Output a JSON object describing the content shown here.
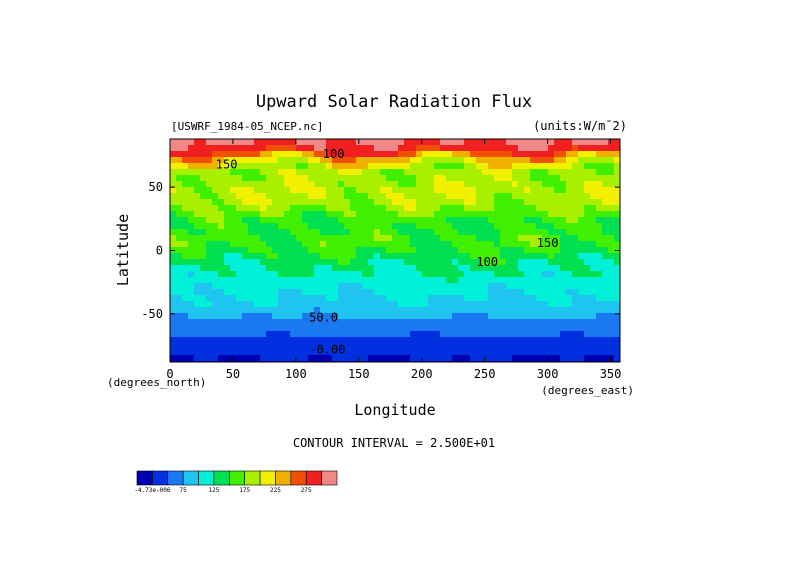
{
  "chart_data": {
    "type": "heatmap",
    "title": "Upward Solar Radiation Flux",
    "source": "[USWRF_1984-05_NCEP.nc]",
    "units": "(units:W/m¯2)",
    "xlabel": "Longitude",
    "ylabel": "Latitude",
    "x_unit_label": "(degrees_east)",
    "y_unit_label": "(degrees_north)",
    "xlim": [
      0,
      357.5
    ],
    "ylim": [
      -88,
      88
    ],
    "x_ticks": [
      0,
      50,
      100,
      150,
      200,
      250,
      300,
      350
    ],
    "y_ticks": [
      50,
      0,
      -50
    ],
    "contour_interval_text": "CONTOUR INTERVAL = 2.500E+01",
    "contour_labels": [
      {
        "text": "50.0",
        "lon": 122,
        "lat": -53
      },
      {
        "text": "-0.00",
        "lon": 125,
        "lat": -78
      },
      {
        "text": "100",
        "lon": 252,
        "lat": -9
      },
      {
        "text": "150",
        "lon": 300,
        "lat": 6
      },
      {
        "text": "100",
        "lon": 130,
        "lat": 76
      },
      {
        "text": "150",
        "lon": 45,
        "lat": 68
      }
    ],
    "colorbar": {
      "levels": [
        0,
        25,
        50,
        75,
        100,
        125,
        150,
        175,
        200,
        225,
        250,
        275
      ],
      "tick_labels": [
        "-4.73e-006",
        "75",
        "125",
        "175",
        "225",
        "275"
      ],
      "colors": [
        "#0000b0",
        "#0030e0",
        "#1a78f0",
        "#20c4f0",
        "#00f0d8",
        "#00e050",
        "#40f000",
        "#a8f000",
        "#f0f000",
        "#f0b000",
        "#f05000",
        "#f02020",
        "#f08888"
      ]
    },
    "zonal_profile": {
      "description": "approximate zonal-mean flux (W/m2) by latitude, with longitudinal variability",
      "lat": [
        -88,
        -80,
        -72,
        -64,
        -56,
        -48,
        -40,
        -32,
        -24,
        -16,
        -8,
        0,
        8,
        16,
        24,
        32,
        40,
        48,
        56,
        64,
        72,
        80,
        88
      ],
      "value": [
        -5,
        8,
        18,
        30,
        45,
        60,
        72,
        78,
        88,
        100,
        110,
        125,
        135,
        125,
        130,
        150,
        165,
        170,
        160,
        165,
        200,
        260,
        285
      ]
    }
  }
}
